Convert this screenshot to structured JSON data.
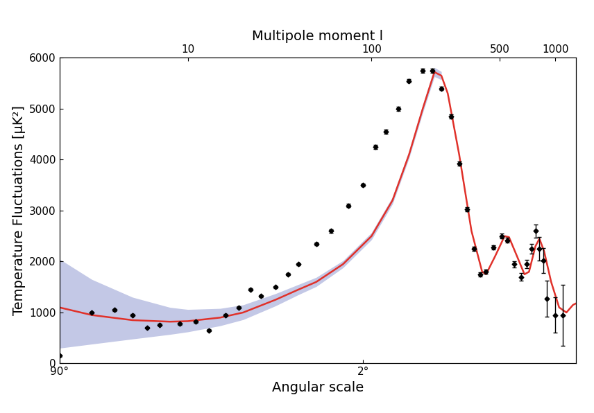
{
  "chart_data": {
    "type": "line",
    "x_label": "Multipole moment l",
    "x2_label": "Angular scale",
    "y_label": "Temperature Fluctuations [μK²]",
    "log": "x",
    "grid": false,
    "xlim": [
      2,
      1300
    ],
    "xticks": [
      10,
      100,
      500,
      1000
    ],
    "x2ticks": [
      {
        "value": 2,
        "label": "90°"
      },
      {
        "value": 90,
        "label": "2°"
      }
    ],
    "ylim": [
      0,
      6000
    ],
    "yticks": [
      0,
      1000,
      2000,
      3000,
      4000,
      5000,
      6000
    ],
    "band": {
      "color": "#c3c8e6",
      "x": [
        2,
        3,
        5,
        8,
        10,
        15,
        20,
        30,
        40,
        50,
        70,
        100,
        130,
        160,
        190,
        220,
        240
      ],
      "lower": [
        300,
        380,
        480,
        570,
        620,
        740,
        860,
        1130,
        1350,
        1510,
        1880,
        2430,
        3130,
        4030,
        4920,
        5630,
        5570
      ],
      "upper": [
        2050,
        1650,
        1300,
        1100,
        1060,
        1080,
        1150,
        1370,
        1550,
        1690,
        2020,
        2570,
        3270,
        4170,
        5080,
        5810,
        5730
      ]
    },
    "series": [
      {
        "type": "line",
        "color": "#e0312a",
        "x": [
          2,
          3,
          5,
          8,
          10,
          15,
          20,
          30,
          40,
          50,
          70,
          100,
          130,
          160,
          190,
          220,
          240,
          260,
          300,
          350,
          400,
          420,
          470,
          530,
          560,
          620,
          680,
          720,
          780,
          820,
          870,
          950,
          1050,
          1150,
          1250,
          1300
        ],
        "values": [
          1100,
          950,
          850,
          820,
          830,
          900,
          1000,
          1250,
          1450,
          1600,
          1950,
          2500,
          3200,
          4100,
          5000,
          5720,
          5650,
          5300,
          4100,
          2600,
          1800,
          1750,
          2100,
          2500,
          2480,
          2100,
          1750,
          1800,
          2300,
          2450,
          2200,
          1600,
          1100,
          1000,
          1150,
          1180
        ]
      },
      {
        "type": "scatter",
        "color": "#000000",
        "marker": "diamond",
        "x": [
          2,
          3,
          4,
          5,
          6,
          7,
          9,
          11,
          13,
          16,
          19,
          22,
          25,
          30,
          35,
          40,
          50,
          60,
          75,
          90,
          105,
          120,
          140,
          160,
          190,
          215,
          240,
          270,
          300,
          330,
          360,
          390,
          420,
          460,
          510,
          550,
          600,
          650,
          700,
          740,
          780,
          820,
          860,
          900,
          1000,
          1100
        ],
        "values": [
          150,
          1000,
          1050,
          950,
          700,
          760,
          780,
          820,
          650,
          950,
          1100,
          1450,
          1320,
          1500,
          1750,
          1950,
          2350,
          2600,
          3100,
          3500,
          4250,
          4550,
          5000,
          5550,
          5750,
          5750,
          5400,
          4850,
          3930,
          3030,
          2250,
          1750,
          1800,
          2280,
          2500,
          2420,
          1950,
          1700,
          1950,
          2250,
          2600,
          2250,
          2020,
          1270,
          950,
          950
        ],
        "errors": [
          20,
          20,
          20,
          20,
          20,
          20,
          20,
          20,
          20,
          20,
          20,
          20,
          20,
          20,
          20,
          20,
          30,
          30,
          30,
          30,
          40,
          40,
          40,
          40,
          40,
          40,
          40,
          40,
          40,
          40,
          40,
          40,
          40,
          40,
          50,
          50,
          60,
          70,
          80,
          100,
          130,
          230,
          240,
          350,
          350,
          600
        ]
      }
    ]
  }
}
